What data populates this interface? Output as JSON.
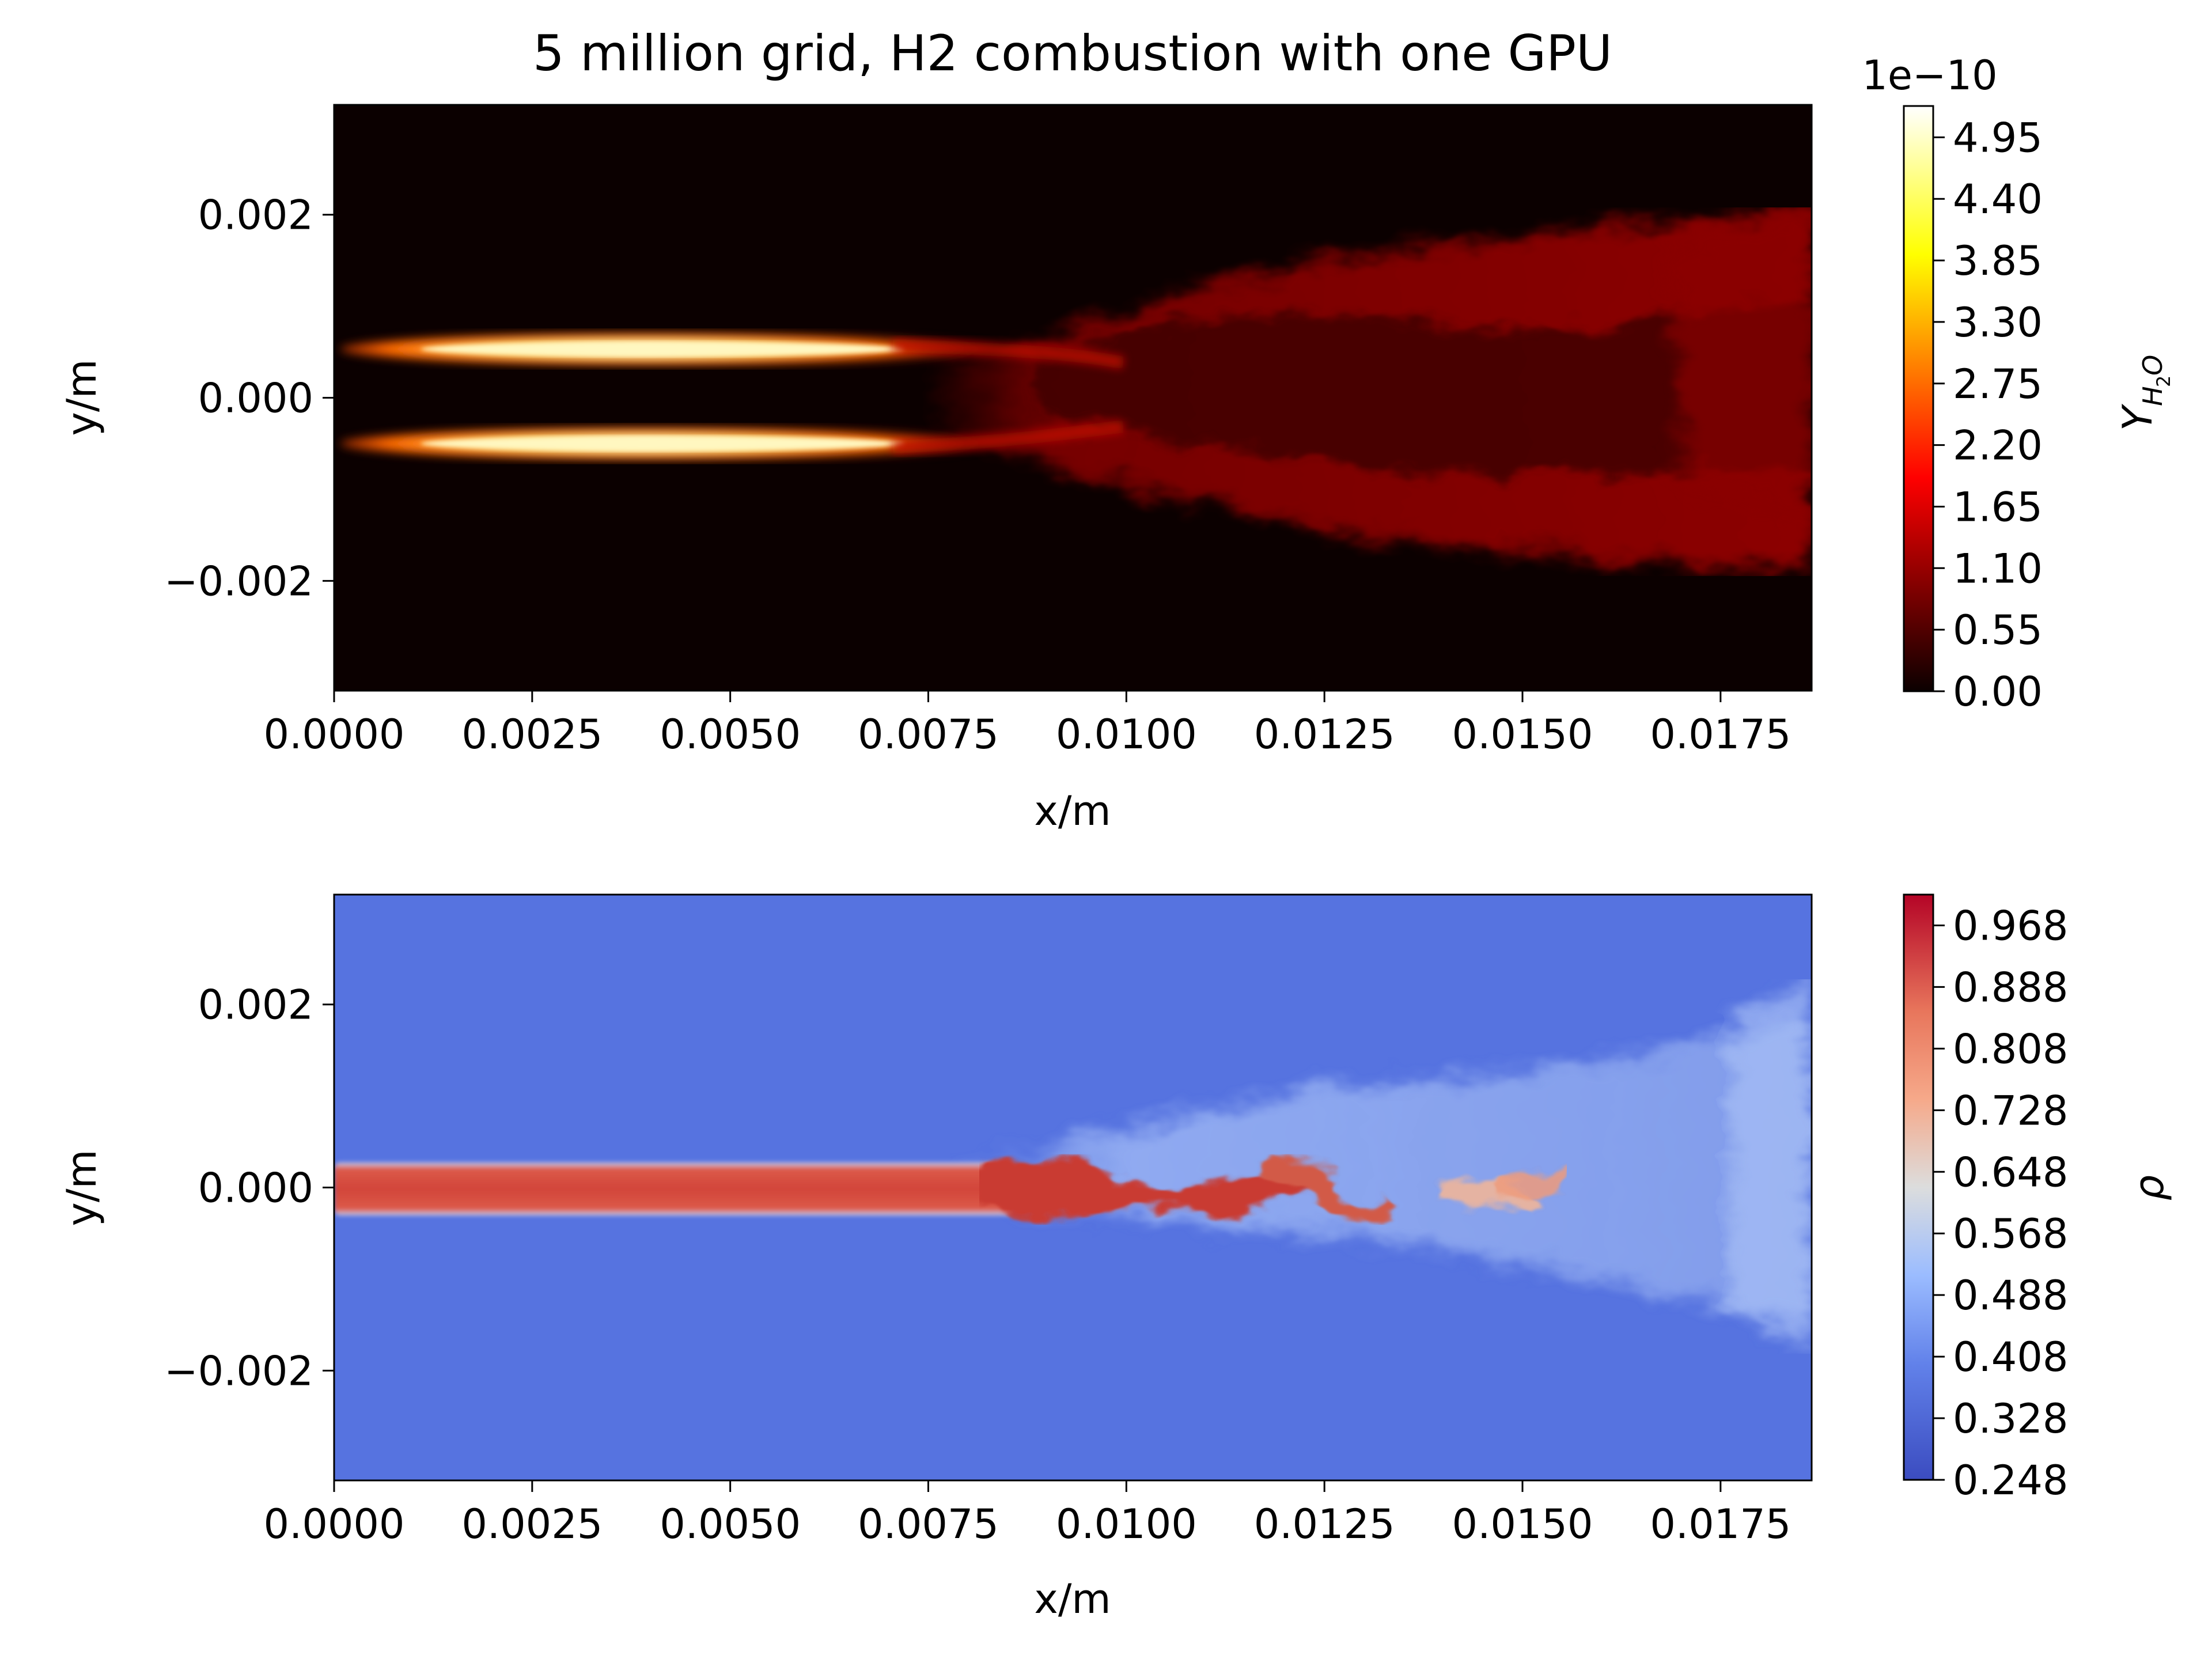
{
  "figure_title": "5 million grid, H2 combustion with one GPU",
  "chart_data": [
    {
      "type": "heatmap",
      "field": "water vapour mass fraction",
      "colormap": "hot",
      "xlabel": "x/m",
      "ylabel": "y/m",
      "xlim": [
        0.0,
        0.01865
      ],
      "ylim": [
        -0.0032,
        0.0032
      ],
      "x_ticks": [
        0.0,
        0.0025,
        0.005,
        0.0075,
        0.01,
        0.0125,
        0.015,
        0.0175
      ],
      "x_tick_labels": [
        "0.0000",
        "0.0025",
        "0.0050",
        "0.0075",
        "0.0100",
        "0.0125",
        "0.0150",
        "0.0175"
      ],
      "y_ticks": [
        0.002,
        0.0,
        -0.002
      ],
      "y_tick_labels": [
        "0.002",
        "0.000",
        "−0.002"
      ],
      "colorbar": {
        "label_main": "Y",
        "label_sub_a": "H",
        "label_sub_b": "2",
        "label_sub_c": "O",
        "offset_text": "1e−10",
        "range": [
          0.0,
          5.23
        ],
        "ticks": [
          0.0,
          0.55,
          1.1,
          1.65,
          2.2,
          2.75,
          3.3,
          3.85,
          4.4,
          4.95
        ],
        "tick_labels": [
          "0.00",
          "0.55",
          "1.10",
          "1.65",
          "2.20",
          "2.75",
          "3.30",
          "3.85",
          "4.40",
          "4.95"
        ]
      },
      "features": [
        {
          "name": "upper flame sheet",
          "x_range": [
            0.0002,
            0.0085
          ],
          "y_center": 0.00052,
          "peak": 5.0
        },
        {
          "name": "lower flame sheet",
          "x_range": [
            0.0002,
            0.0085
          ],
          "y_center": -0.00052,
          "peak": 5.0
        },
        {
          "name": "turbulent plume",
          "x_range": [
            0.0075,
            0.01865
          ],
          "y_range": [
            -0.0018,
            0.0018
          ],
          "level": 1.2
        }
      ]
    },
    {
      "type": "heatmap",
      "field": "density",
      "colormap": "coolwarm",
      "xlabel": "x/m",
      "ylabel": "y/m",
      "xlim": [
        0.0,
        0.01865
      ],
      "ylim": [
        -0.0032,
        0.0032
      ],
      "x_ticks": [
        0.0,
        0.0025,
        0.005,
        0.0075,
        0.01,
        0.0125,
        0.015,
        0.0175
      ],
      "x_tick_labels": [
        "0.0000",
        "0.0025",
        "0.0050",
        "0.0075",
        "0.0100",
        "0.0125",
        "0.0150",
        "0.0175"
      ],
      "y_ticks": [
        0.002,
        0.0,
        -0.002
      ],
      "y_tick_labels": [
        "0.002",
        "0.000",
        "−0.002"
      ],
      "colorbar": {
        "label": "ρ",
        "range": [
          0.248,
          1.008
        ],
        "ticks": [
          0.248,
          0.328,
          0.408,
          0.488,
          0.568,
          0.648,
          0.728,
          0.808,
          0.888,
          0.968
        ],
        "tick_labels": [
          "0.248",
          "0.328",
          "0.408",
          "0.488",
          "0.568",
          "0.648",
          "0.728",
          "0.808",
          "0.888",
          "0.968"
        ]
      },
      "features": [
        {
          "name": "dense jet core",
          "x_range": [
            0.0,
            0.0085
          ],
          "y_range": [
            -0.00027,
            0.00027
          ],
          "value": 0.97
        },
        {
          "name": "jet breakup",
          "x_range": [
            0.0085,
            0.0157
          ],
          "y_range": [
            -0.0006,
            0.0006
          ],
          "value": 0.8
        },
        {
          "name": "ambient",
          "value": 0.31
        }
      ]
    }
  ]
}
